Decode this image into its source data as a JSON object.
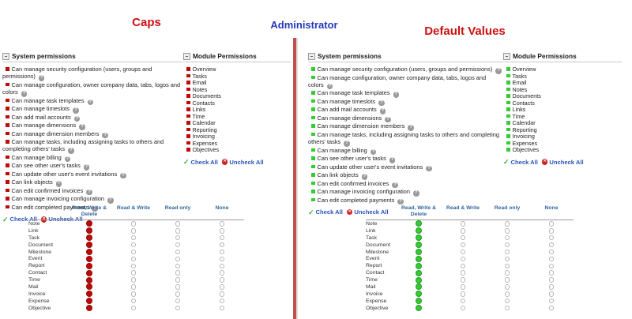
{
  "page": {
    "center_title": "Administrator"
  },
  "panels": [
    {
      "title": "Caps",
      "accent": "#c00808"
    },
    {
      "title": "Default Values",
      "accent": "#33cc33"
    }
  ],
  "sections": {
    "system": {
      "title": "System permissions",
      "items": [
        "Can manage security configuration (users, groups and permissions)",
        "Can manage configuration, owner company data, tabs, logos and colors",
        "Can manage task templates",
        "Can manage timeslots",
        "Can add mail accounts",
        "Can manage dimensions",
        "Can manage dimension members",
        "Can manage tasks, including assigning tasks to others and completing others' tasks",
        "Can manage billing",
        "Can see other user's tasks",
        "Can update other user's event invitations",
        "Can link objects",
        "Can edit confirmed invoices",
        "Can manage invoicing configuration",
        "Can edit completed payments"
      ],
      "check_all_label": "Check All",
      "uncheck_all_label": "Uncheck All"
    },
    "module": {
      "title": "Module Permissions",
      "items": [
        "Overview",
        "Tasks",
        "Email",
        "Notes",
        "Documents",
        "Contacts",
        "Links",
        "Time",
        "Calendar",
        "Reporting",
        "Invoicing",
        "Expenses",
        "Objectives"
      ],
      "check_all_label": "Check All",
      "uncheck_all_label": "Uncheck All"
    }
  },
  "object_permissions_table": {
    "columns": [
      "Read, Write & Delete",
      "Read & Write",
      "Read only",
      "None"
    ],
    "rows": [
      "Note",
      "Link",
      "Task",
      "Document",
      "Milestone",
      "Event",
      "Report",
      "Contact",
      "Time",
      "Mail",
      "Invoice",
      "Expense",
      "Objective"
    ],
    "selected_column_index": 0
  },
  "icons": {
    "help": "?",
    "check": "✓",
    "uncheck": "✕"
  },
  "colors": {
    "caps_accent": "#c00808",
    "defaults_accent": "#33cc33",
    "panel_title": "#cc1111",
    "admin_title": "#2438b8",
    "link_blue": "#2a52be",
    "table_header_blue": "#336699",
    "divider_red": "#c0504d"
  }
}
